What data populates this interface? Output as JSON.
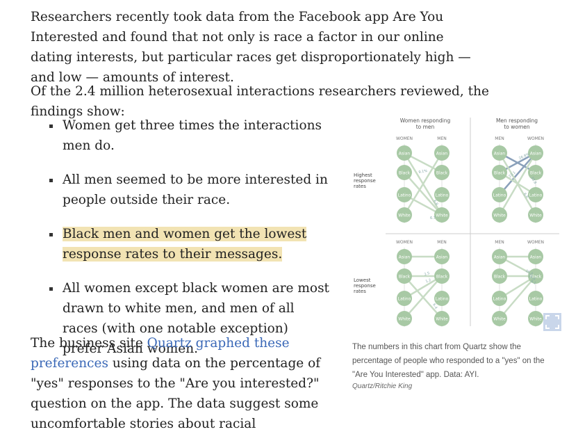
{
  "article": {
    "p1": "Researchers recently took data from the Facebook app Are You Interested and found that not only is race a factor in our online dating interests, but particular races get disproportionately high — and low — amounts of interest.",
    "p2": "Of the 2.4 million heterosexual interactions researchers reviewed, the findings show:",
    "bullets": [
      "Women get three times the interactions men do.",
      "All men seemed to be more interested in people outside their race.",
      "Black men and women get the lowest response rates to their messages.",
      "All women except black women are most drawn to white men, and men of all races (with one notable exception) prefer Asian women."
    ],
    "p3_before": "The business site ",
    "p3_link": "Quartz graphed these preferences",
    "p3_after": " using data on the percentage of \"yes\" responses to the \"Are you interested?\" question on the app. The data suggest some uncomfortable stories about racial preferences in online dating."
  },
  "figure": {
    "panel_titles": [
      "Women responding",
      "to men",
      "Men responding",
      "to women"
    ],
    "col_labels": {
      "women": "WOMEN",
      "men": "MEN"
    },
    "row_labels": {
      "highest": [
        "Highest",
        "response",
        "rates"
      ],
      "lowest": [
        "Lowest",
        "response",
        "rates"
      ]
    },
    "races": [
      "Asian",
      "Black",
      "Latino",
      "White"
    ],
    "value_labels": [
      "9.1%",
      "6.8",
      "6.7",
      "26.8%",
      "23.1",
      "18.8",
      "6.8",
      "2.5",
      "1.2",
      "6.4",
      "10.2",
      "16.8",
      "9.1"
    ],
    "caption": "The numbers in this chart from Quartz show the percentage of people who responded to a \"yes\" on the \"Are You Interested\" app. Data: AYI.",
    "credit": "Quartz/Ritchie King",
    "colors": {
      "node": "#a8c9a5",
      "node_text": "#ffffff",
      "line_light": "#c8dcc5",
      "line_dark": "#8aa0ba",
      "divider": "#cccccc"
    }
  },
  "icons": {
    "expand": "expand-icon"
  }
}
